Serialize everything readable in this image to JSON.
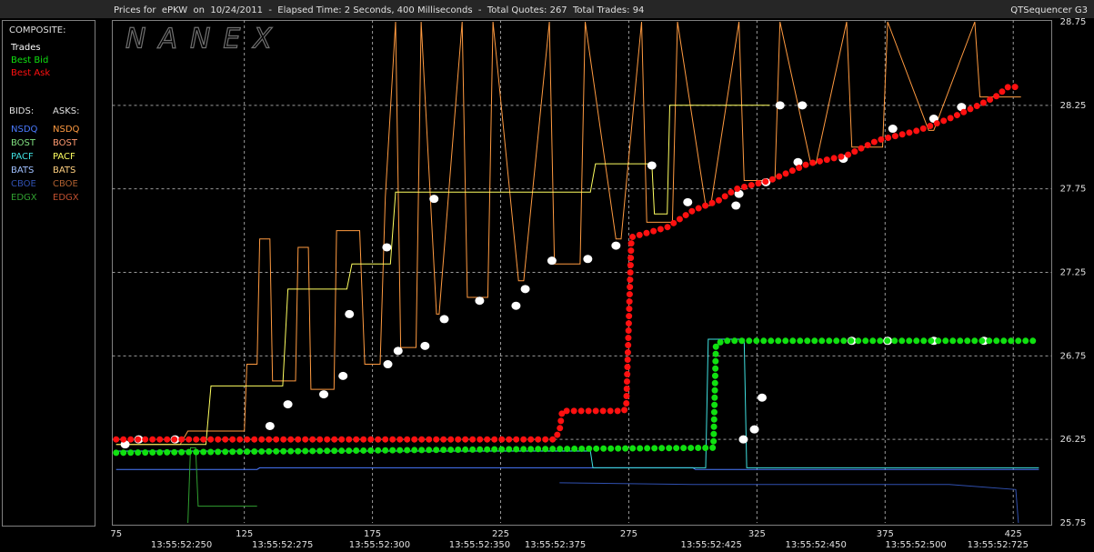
{
  "chart_data": {
    "type": "line",
    "title": "Prices for  ePKW  on  10/24/2011  -  Elapsed Time: 2 Seconds, 400 Milliseconds  -  Total Quotes: 267  Total Trades: 94",
    "source": "QTSequencer G3",
    "watermark": "NANEX",
    "xlim": [
      73.5,
      440
    ],
    "xticks": [
      75,
      125,
      175,
      225,
      275,
      325,
      375,
      425
    ],
    "x2ticks": [
      {
        "value": 100.5,
        "label": "13:55:52:250"
      },
      {
        "value": 139.9,
        "label": "13:55:52:275"
      },
      {
        "value": 177.8,
        "label": "13:55:52:300"
      },
      {
        "value": 216.8,
        "label": "13:55:52:350"
      },
      {
        "value": 246.3,
        "label": "13:55:52:375"
      },
      {
        "value": 307.2,
        "label": "13:55:52:425"
      },
      {
        "value": 348,
        "label": "13:55:52:450"
      },
      {
        "value": 387,
        "label": "13:55:52:500"
      },
      {
        "value": 419,
        "label": "13:55:52:725"
      }
    ],
    "ylim": [
      25.75,
      28.75
    ],
    "yticks": [
      25.75,
      26.25,
      26.75,
      27.25,
      27.75,
      28.25,
      28.75
    ],
    "grid": true,
    "composite_label": "COMPOSITE:",
    "series": [
      {
        "name": "Trades",
        "color": "#ffffff",
        "style": "points",
        "x": [
          78.5,
          83.8,
          98,
          135,
          142,
          156,
          163.5,
          166,
          181,
          185,
          180.6,
          195.5,
          203,
          199,
          216.8,
          231,
          234.6,
          245,
          259,
          270,
          284,
          298,
          316.8,
          318,
          319.7,
          324,
          327,
          328.5,
          334,
          341,
          342.7,
          358.7,
          362,
          376,
          378,
          394,
          394,
          404.8,
          413.6
        ],
        "values": [
          26.22,
          26.25,
          26.25,
          26.33,
          26.46,
          26.52,
          26.63,
          27.0,
          26.7,
          26.78,
          27.4,
          26.81,
          26.97,
          27.69,
          27.08,
          27.05,
          27.15,
          27.32,
          27.33,
          27.41,
          27.89,
          27.67,
          27.65,
          27.72,
          26.25,
          26.31,
          26.5,
          27.79,
          28.25,
          27.91,
          28.25,
          27.93,
          26.84,
          26.84,
          28.11,
          26.84,
          28.17,
          28.24,
          26.84
        ]
      },
      {
        "name": "Best Bid",
        "color": "#10e010",
        "style": "dotted",
        "x": [
          75,
          150,
          220,
          308,
          309,
          312,
          435
        ],
        "values": [
          26.17,
          26.18,
          26.19,
          26.2,
          26.82,
          26.84,
          26.84
        ]
      },
      {
        "name": "Best Ask",
        "color": "#ff1010",
        "style": "dotted",
        "x": [
          75,
          246,
          248,
          249,
          273,
          274,
          276,
          290,
          300,
          310,
          317,
          330,
          345,
          360,
          372,
          388,
          400,
          410,
          418,
          423,
          428
        ],
        "values": [
          26.25,
          26.25,
          26.3,
          26.42,
          26.42,
          26.44,
          27.46,
          27.52,
          27.62,
          27.68,
          27.75,
          27.8,
          27.9,
          27.95,
          28.04,
          28.1,
          28.17,
          28.24,
          28.3,
          28.36,
          28.36
        ]
      }
    ],
    "bids_label": "BIDS:",
    "asks_label": "ASKS:",
    "exchanges": [
      {
        "name": "NSDQ",
        "bid_color": "#4a7aff",
        "ask_color": "#ff9a40",
        "bid_line": {
          "x": [
            75,
            130,
            131,
            300,
            301,
            435
          ],
          "values": [
            26.07,
            26.07,
            26.08,
            26.08,
            26.07,
            26.07
          ]
        },
        "ask_line": {
          "x": [
            75,
            100,
            103,
            125,
            126,
            130,
            131,
            135,
            136,
            145,
            146,
            150,
            151,
            160,
            161,
            170,
            172,
            178,
            180,
            184,
            186,
            192,
            194,
            200,
            201,
            210,
            212,
            220,
            222,
            232,
            234,
            244,
            246,
            256,
            258,
            270,
            272,
            280,
            282,
            292,
            294,
            305,
            307,
            318,
            320,
            332,
            334,
            346,
            348,
            360,
            362,
            374,
            376,
            392,
            394,
            410,
            412,
            428
          ],
          "values": [
            26.22,
            26.22,
            26.3,
            26.3,
            26.7,
            26.7,
            27.45,
            27.45,
            26.6,
            26.6,
            27.4,
            27.4,
            26.55,
            26.55,
            27.5,
            27.5,
            26.7,
            26.7,
            27.7,
            28.75,
            26.8,
            26.8,
            28.75,
            27.0,
            27.0,
            28.75,
            27.1,
            27.1,
            28.75,
            27.2,
            27.2,
            28.75,
            27.3,
            27.3,
            28.75,
            27.45,
            27.45,
            28.75,
            27.55,
            27.55,
            28.75,
            27.65,
            27.65,
            28.75,
            27.8,
            27.8,
            28.75,
            27.9,
            27.9,
            28.75,
            28.0,
            28.0,
            28.75,
            28.1,
            28.1,
            28.75,
            28.3,
            28.3
          ]
        }
      },
      {
        "name": "BOST",
        "bid_color": "#80e080",
        "ask_color": "#ff9a70"
      },
      {
        "name": "PACF",
        "bid_color": "#40e0e0",
        "ask_color": "#ffff60",
        "bid_line": {
          "x": [
            75,
            260,
            261,
            305,
            306,
            320,
            321,
            435
          ],
          "values": [
            26.18,
            26.18,
            26.08,
            26.08,
            26.85,
            26.85,
            26.08,
            26.08
          ]
        },
        "ask_line": {
          "x": [
            75,
            110,
            112,
            140,
            142,
            165,
            167,
            182,
            184,
            260,
            262,
            284,
            285,
            290,
            291,
            330
          ],
          "values": [
            26.22,
            26.22,
            26.57,
            26.57,
            27.15,
            27.15,
            27.3,
            27.3,
            27.73,
            27.73,
            27.9,
            27.9,
            27.6,
            27.6,
            28.25,
            28.25
          ]
        }
      },
      {
        "name": "BATS",
        "bid_color": "#a0c0ff",
        "ask_color": "#ffd080"
      },
      {
        "name": "CBOE",
        "bid_color": "#3050b0",
        "ask_color": "#b06030",
        "bid_line": {
          "x": [
            248,
            300,
            400,
            426,
            427
          ],
          "values": [
            25.99,
            25.98,
            25.98,
            25.95,
            25.75
          ]
        }
      },
      {
        "name": "EDGX",
        "bid_color": "#30a030",
        "ask_color": "#c05030",
        "bid_line": {
          "x": [
            103,
            104,
            106,
            107,
            130
          ],
          "values": [
            25.75,
            26.2,
            26.2,
            25.85,
            25.85
          ]
        }
      }
    ]
  }
}
